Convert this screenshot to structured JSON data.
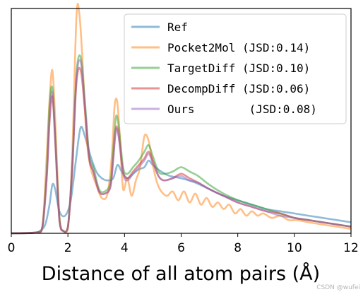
{
  "chart_data": {
    "type": "line",
    "xlabel": "Distance of all atom pairs (Å)",
    "xlim": [
      0,
      12
    ],
    "xticks": [
      "0",
      "2",
      "4",
      "6",
      "8",
      "10",
      "12"
    ],
    "yticks_visible": false,
    "legend_position": "top-right",
    "series": [
      {
        "name": "Ref",
        "color": "#1f77b4",
        "x": [
          0,
          0.8,
          1.0,
          1.2,
          1.35,
          1.45,
          1.55,
          1.7,
          1.9,
          2.1,
          2.3,
          2.45,
          2.6,
          2.8,
          3.0,
          3.2,
          3.4,
          3.6,
          3.75,
          3.9,
          4.1,
          4.3,
          4.5,
          4.7,
          4.85,
          5.0,
          5.3,
          5.6,
          6.0,
          6.5,
          7.0,
          7.5,
          8.0,
          8.5,
          9.0,
          9.5,
          10.0,
          10.5,
          11.0,
          11.5,
          12.0
        ],
        "y": [
          0,
          0.002,
          0.01,
          0.04,
          0.13,
          0.22,
          0.2,
          0.1,
          0.08,
          0.15,
          0.35,
          0.48,
          0.44,
          0.35,
          0.28,
          0.25,
          0.24,
          0.25,
          0.31,
          0.28,
          0.25,
          0.27,
          0.29,
          0.3,
          0.33,
          0.31,
          0.28,
          0.26,
          0.25,
          0.23,
          0.2,
          0.17,
          0.15,
          0.13,
          0.11,
          0.1,
          0.09,
          0.08,
          0.07,
          0.06,
          0.05
        ]
      },
      {
        "name": "Pocket2Mol (JSD:0.14)",
        "color": "#ff7f0e",
        "x": [
          0,
          0.9,
          1.1,
          1.25,
          1.35,
          1.45,
          1.55,
          1.7,
          1.85,
          2.0,
          2.15,
          2.3,
          2.4,
          2.5,
          2.65,
          2.8,
          3.0,
          3.2,
          3.4,
          3.55,
          3.65,
          3.75,
          3.85,
          3.95,
          4.1,
          4.25,
          4.4,
          4.55,
          4.7,
          4.85,
          5.0,
          5.15,
          5.3,
          5.5,
          5.7,
          5.9,
          6.1,
          6.3,
          6.5,
          6.7,
          6.9,
          7.1,
          7.3,
          7.5,
          7.7,
          7.9,
          8.1,
          8.3,
          8.5,
          8.7,
          8.9,
          9.2,
          9.5,
          9.8,
          10.1,
          10.5,
          11.0,
          11.5,
          12.0
        ],
        "y": [
          0,
          0.005,
          0.03,
          0.35,
          0.6,
          0.74,
          0.52,
          0.08,
          0.01,
          0.02,
          0.35,
          0.98,
          1.0,
          0.82,
          0.45,
          0.3,
          0.22,
          0.16,
          0.18,
          0.35,
          0.58,
          0.59,
          0.4,
          0.2,
          0.25,
          0.17,
          0.24,
          0.3,
          0.44,
          0.42,
          0.31,
          0.23,
          0.19,
          0.17,
          0.19,
          0.15,
          0.19,
          0.14,
          0.18,
          0.13,
          0.16,
          0.12,
          0.14,
          0.11,
          0.13,
          0.09,
          0.11,
          0.08,
          0.1,
          0.08,
          0.09,
          0.07,
          0.08,
          0.06,
          0.06,
          0.05,
          0.04,
          0.03,
          0.02
        ]
      },
      {
        "name": "TargetDiff (JSD:0.10)",
        "color": "#2ca02c",
        "x": [
          0,
          0.9,
          1.1,
          1.25,
          1.35,
          1.45,
          1.55,
          1.7,
          1.85,
          2.0,
          2.15,
          2.3,
          2.45,
          2.6,
          2.75,
          2.9,
          3.1,
          3.3,
          3.5,
          3.6,
          3.7,
          3.8,
          3.95,
          4.1,
          4.3,
          4.5,
          4.7,
          4.85,
          5.0,
          5.2,
          5.4,
          5.7,
          6.0,
          6.3,
          6.6,
          7.0,
          7.5,
          8.0,
          8.5,
          9.0,
          9.5,
          10.0,
          10.5,
          11.0,
          11.5,
          12.0
        ],
        "y": [
          0,
          0.004,
          0.03,
          0.28,
          0.58,
          0.66,
          0.45,
          0.07,
          0.01,
          0.03,
          0.3,
          0.72,
          0.8,
          0.6,
          0.36,
          0.3,
          0.2,
          0.19,
          0.23,
          0.38,
          0.53,
          0.48,
          0.3,
          0.27,
          0.3,
          0.33,
          0.37,
          0.4,
          0.35,
          0.28,
          0.27,
          0.28,
          0.3,
          0.28,
          0.26,
          0.22,
          0.18,
          0.15,
          0.13,
          0.11,
          0.09,
          0.07,
          0.06,
          0.05,
          0.04,
          0.03
        ]
      },
      {
        "name": "DecompDiff (JSD:0.06)",
        "color": "#d62728",
        "x": [
          0,
          0.9,
          1.1,
          1.25,
          1.35,
          1.45,
          1.55,
          1.7,
          1.85,
          2.0,
          2.15,
          2.3,
          2.45,
          2.6,
          2.75,
          2.9,
          3.1,
          3.3,
          3.5,
          3.6,
          3.7,
          3.8,
          3.95,
          4.1,
          4.3,
          4.5,
          4.7,
          4.85,
          5.0,
          5.2,
          5.4,
          5.7,
          6.0,
          6.3,
          6.6,
          7.0,
          7.5,
          8.0,
          8.5,
          9.0,
          9.5,
          10.0,
          10.5,
          11.0,
          11.5,
          12.0
        ],
        "y": [
          0,
          0.004,
          0.03,
          0.25,
          0.5,
          0.62,
          0.42,
          0.06,
          0.01,
          0.03,
          0.28,
          0.68,
          0.74,
          0.56,
          0.34,
          0.28,
          0.19,
          0.18,
          0.21,
          0.34,
          0.48,
          0.44,
          0.28,
          0.25,
          0.28,
          0.31,
          0.34,
          0.37,
          0.33,
          0.26,
          0.24,
          0.25,
          0.27,
          0.25,
          0.23,
          0.2,
          0.17,
          0.14,
          0.12,
          0.1,
          0.09,
          0.07,
          0.06,
          0.05,
          0.04,
          0.03
        ]
      },
      {
        "name": "Ours        (JSD:0.08)",
        "color": "#9467bd",
        "x": [
          0,
          0.9,
          1.1,
          1.25,
          1.35,
          1.45,
          1.55,
          1.7,
          1.85,
          2.0,
          2.15,
          2.3,
          2.45,
          2.6,
          2.75,
          2.9,
          3.1,
          3.3,
          3.5,
          3.6,
          3.7,
          3.8,
          3.95,
          4.1,
          4.3,
          4.5,
          4.7,
          4.85,
          5.0,
          5.2,
          5.4,
          5.7,
          6.0,
          6.3,
          6.6,
          7.0,
          7.5,
          8.0,
          8.5,
          9.0,
          9.5,
          10.0,
          10.5,
          11.0,
          11.5,
          12.0
        ],
        "y": [
          0,
          0.004,
          0.03,
          0.25,
          0.52,
          0.64,
          0.43,
          0.06,
          0.01,
          0.03,
          0.3,
          0.7,
          0.78,
          0.58,
          0.35,
          0.28,
          0.19,
          0.18,
          0.21,
          0.33,
          0.47,
          0.43,
          0.27,
          0.24,
          0.27,
          0.3,
          0.33,
          0.36,
          0.32,
          0.26,
          0.24,
          0.25,
          0.26,
          0.24,
          0.23,
          0.2,
          0.17,
          0.14,
          0.12,
          0.1,
          0.08,
          0.07,
          0.06,
          0.05,
          0.04,
          0.03
        ]
      }
    ]
  },
  "watermark": "CSDN @wufei"
}
